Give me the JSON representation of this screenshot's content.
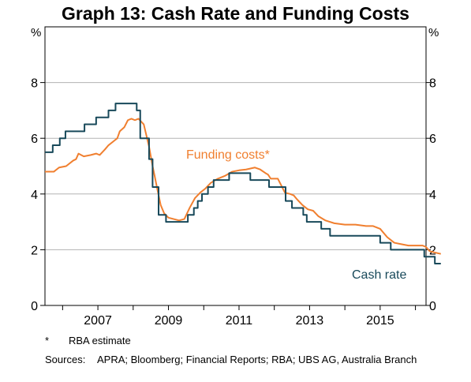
{
  "title": "Graph 13: Cash Rate and Funding Costs",
  "footnote": {
    "mark": "*",
    "text": "RBA estimate"
  },
  "sources": {
    "label": "Sources:",
    "text": "APRA; Bloomberg; Financial Reports; RBA; UBS AG, Australia Branch"
  },
  "chart_data": {
    "type": "line",
    "left_axis_label": "%",
    "right_axis_label": "%",
    "ylim": [
      0,
      10
    ],
    "yticks": [
      0,
      2,
      4,
      6,
      8
    ],
    "xlim": [
      2005.5,
      2016.3
    ],
    "xticks": [
      2007,
      2009,
      2011,
      2013,
      2015
    ],
    "grid": true,
    "series": [
      {
        "name": "Cash rate",
        "color": "#18495a",
        "x": [
          2005.5,
          2005.72,
          2005.72,
          2005.92,
          2005.92,
          2006.08,
          2006.08,
          2006.25,
          2006.25,
          2006.35,
          2006.35,
          2006.62,
          2006.62,
          2006.95,
          2006.95,
          2007.1,
          2007.1,
          2007.3,
          2007.3,
          2007.5,
          2007.5,
          2007.65,
          2007.65,
          2008.1,
          2008.1,
          2008.2,
          2008.2,
          2008.45,
          2008.45,
          2008.55,
          2008.55,
          2008.65,
          2008.65,
          2008.72,
          2008.72,
          2008.86,
          2008.86,
          2008.93,
          2008.93,
          2009.3,
          2009.3,
          2009.55,
          2009.55,
          2009.72,
          2009.72,
          2009.83,
          2009.83,
          2009.95,
          2009.95,
          2010.12,
          2010.12,
          2010.28,
          2010.28,
          2010.72,
          2010.72,
          2011.32,
          2011.32,
          2011.85,
          2011.85,
          2012.05,
          2012.05,
          2012.1,
          2012.1,
          2012.32,
          2012.32,
          2012.5,
          2012.5,
          2012.67,
          2012.67,
          2012.82,
          2012.82,
          2012.92,
          2012.92,
          2013.33,
          2013.33,
          2013.58,
          2013.58,
          2015.0,
          2015.0,
          2015.3,
          2015.3,
          2016.25,
          2016.25,
          2016.55,
          2016.55,
          2016.72
        ],
        "y": [
          5.5,
          5.5,
          5.75,
          5.75,
          6.0,
          6.0,
          6.25,
          6.25,
          6.25,
          6.25,
          6.25,
          6.25,
          6.5,
          6.5,
          6.75,
          6.75,
          6.75,
          6.75,
          7.0,
          7.0,
          7.25,
          7.25,
          7.25,
          7.25,
          7.0,
          7.0,
          6.0,
          6.0,
          5.25,
          5.25,
          4.25,
          4.25,
          4.25,
          4.25,
          3.25,
          3.25,
          3.25,
          3.25,
          3.0,
          3.0,
          3.0,
          3.0,
          3.25,
          3.25,
          3.5,
          3.5,
          3.75,
          3.75,
          4.0,
          4.0,
          4.25,
          4.25,
          4.5,
          4.5,
          4.75,
          4.75,
          4.5,
          4.5,
          4.25,
          4.25,
          4.25,
          4.25,
          4.25,
          4.25,
          3.75,
          3.75,
          3.5,
          3.5,
          3.5,
          3.5,
          3.25,
          3.25,
          3.0,
          3.0,
          2.75,
          2.75,
          2.5,
          2.5,
          2.25,
          2.25,
          2.0,
          2.0,
          1.75,
          1.75,
          1.5,
          1.5
        ]
      },
      {
        "name": "Funding costs*",
        "color": "#f07f2f",
        "x": [
          2005.5,
          2005.75,
          2005.9,
          2006.1,
          2006.3,
          2006.38,
          2006.45,
          2006.6,
          2006.8,
          2006.95,
          2007.05,
          2007.2,
          2007.3,
          2007.45,
          2007.55,
          2007.62,
          2007.75,
          2007.85,
          2007.95,
          2008.05,
          2008.15,
          2008.3,
          2008.45,
          2008.55,
          2008.6,
          2008.68,
          2008.78,
          2008.88,
          2009.0,
          2009.3,
          2009.45,
          2009.6,
          2009.75,
          2009.9,
          2010.05,
          2010.2,
          2010.4,
          2010.6,
          2010.8,
          2011.0,
          2011.2,
          2011.45,
          2011.6,
          2011.75,
          2011.82,
          2011.9,
          2012.1,
          2012.2,
          2012.3,
          2012.45,
          2012.55,
          2012.65,
          2012.8,
          2012.95,
          2013.1,
          2013.25,
          2013.45,
          2013.7,
          2014.0,
          2014.3,
          2014.6,
          2014.8,
          2015.0,
          2015.2,
          2015.4,
          2015.6,
          2015.8,
          2016.05,
          2016.2,
          2016.3,
          2016.4,
          2016.55,
          2016.72
        ],
        "y": [
          4.8,
          4.8,
          4.95,
          5.0,
          5.2,
          5.25,
          5.45,
          5.35,
          5.4,
          5.45,
          5.4,
          5.6,
          5.75,
          5.9,
          6.0,
          6.25,
          6.4,
          6.65,
          6.7,
          6.65,
          6.7,
          6.5,
          5.7,
          5.0,
          4.7,
          4.2,
          3.6,
          3.3,
          3.15,
          3.05,
          3.1,
          3.5,
          3.85,
          4.05,
          4.2,
          4.4,
          4.55,
          4.65,
          4.8,
          4.85,
          4.88,
          4.95,
          4.88,
          4.75,
          4.7,
          4.55,
          4.55,
          4.3,
          4.05,
          4.0,
          3.95,
          3.8,
          3.6,
          3.45,
          3.4,
          3.2,
          3.05,
          2.95,
          2.9,
          2.9,
          2.85,
          2.85,
          2.75,
          2.45,
          2.25,
          2.2,
          2.15,
          2.15,
          2.15,
          2.1,
          1.95,
          1.9,
          1.85
        ]
      }
    ],
    "annotations": [
      {
        "text": "Funding costs*",
        "color": "#f07f2f",
        "near": "series-funding"
      },
      {
        "text": "Cash rate",
        "color": "#18495a",
        "near": "series-cash"
      }
    ]
  }
}
